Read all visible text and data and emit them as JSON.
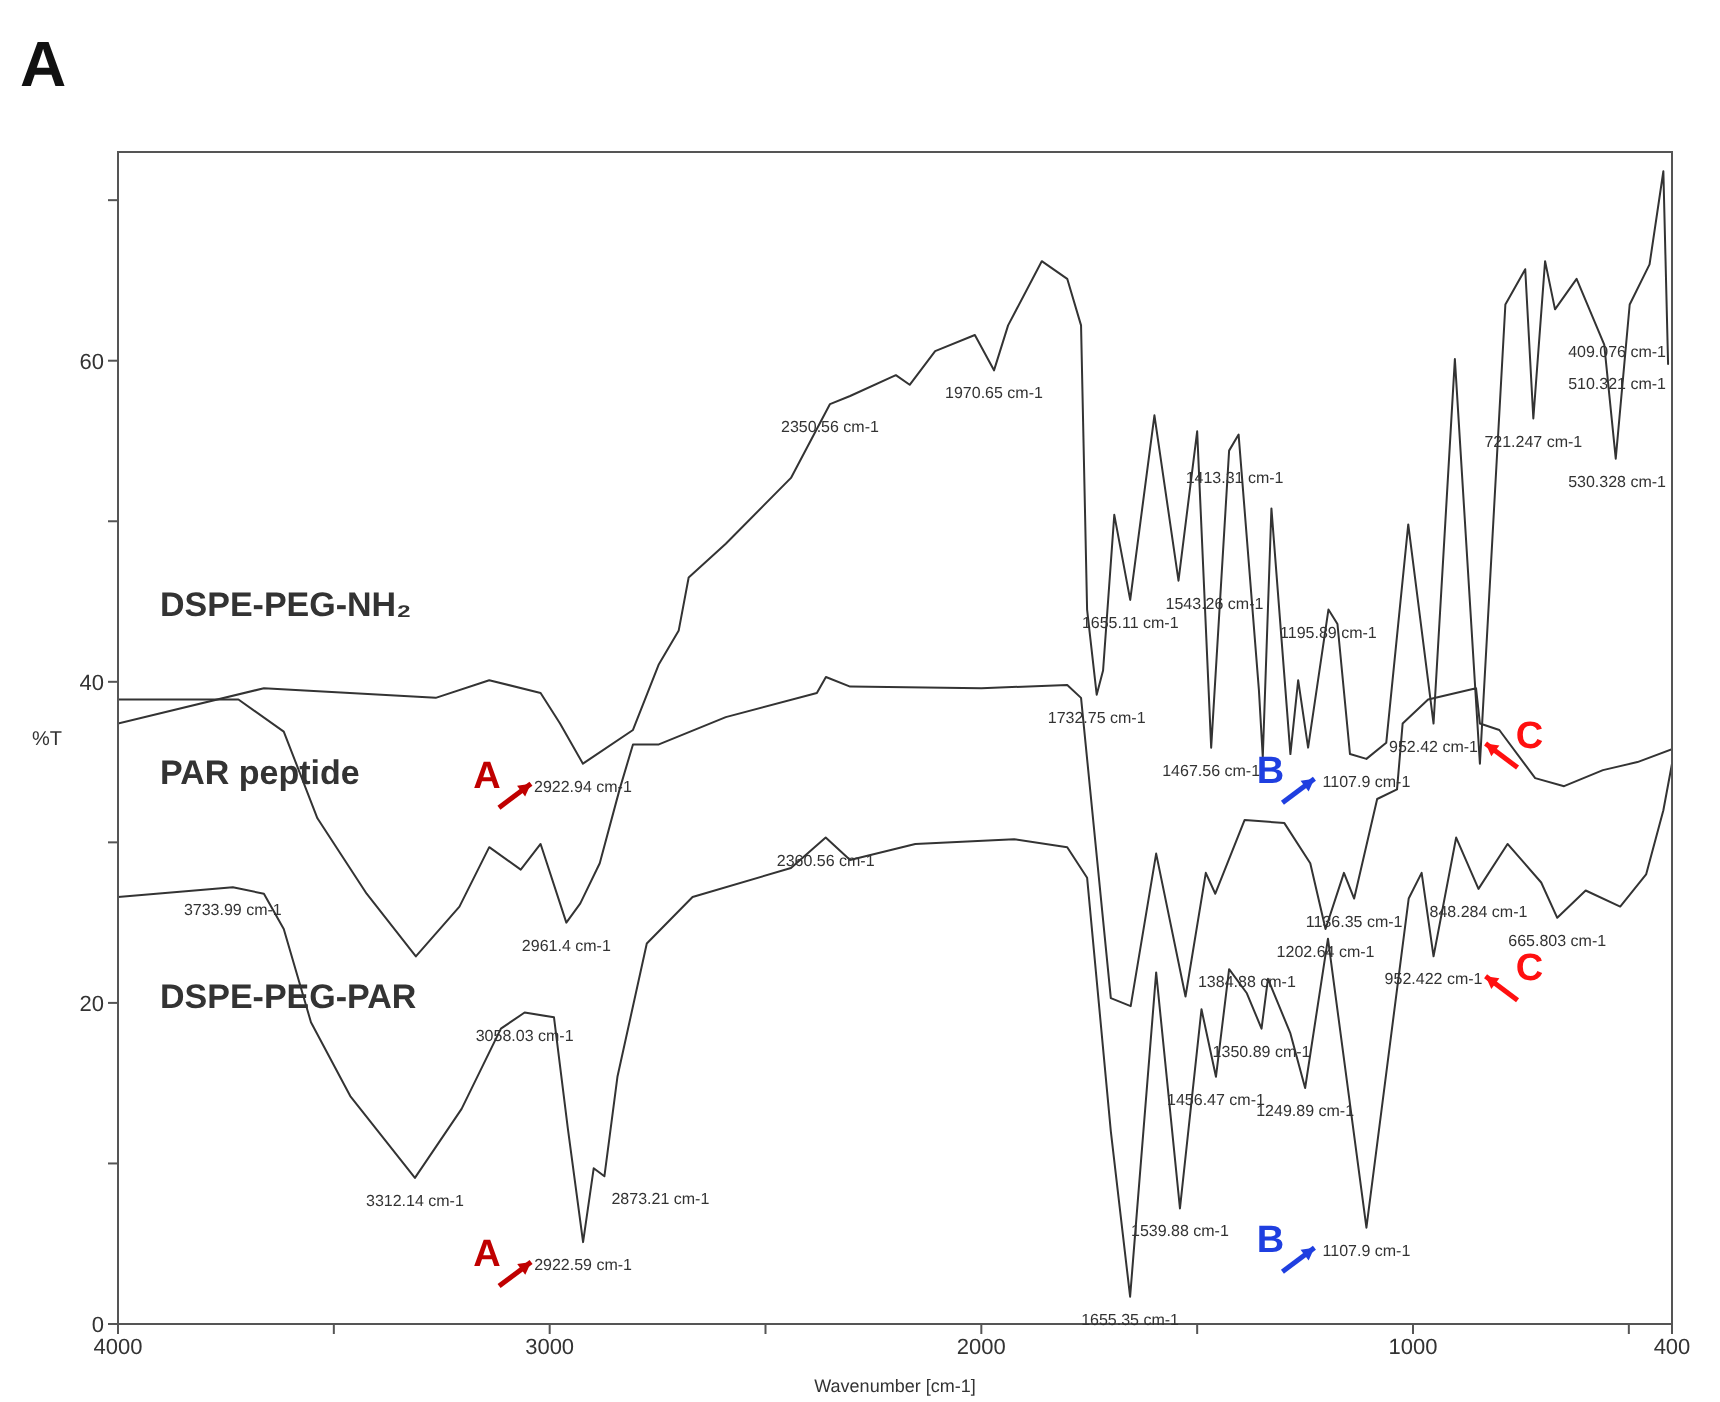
{
  "chart_data": {
    "type": "line",
    "title": "A",
    "xlabel": "Wavenumber [cm-1]",
    "ylabel": "%T",
    "xlim": [
      4000,
      400
    ],
    "xticks": [
      4000,
      {
        "value": 3500,
        "label": null
      },
      3000,
      {
        "value": 2500,
        "label": null
      },
      2000,
      {
        "value": 1500,
        "label": null
      },
      1000,
      {
        "value": 500,
        "label": null
      },
      400
    ],
    "ylim": [
      0,
      73
    ],
    "yticks": [
      0,
      {
        "value": 10,
        "label": null
      },
      20,
      {
        "value": 30,
        "label": null
      },
      40,
      {
        "value": 50,
        "label": null
      },
      60,
      {
        "value": 70,
        "label": null
      }
    ],
    "line_style": "solid",
    "series": [
      {
        "name": "DSPE-PEG-NH₂",
        "color": "#333333",
        "x": [
          4000,
          3662,
          3264,
          3140,
          3021,
          2976,
          2922.94,
          2807,
          2747,
          2701,
          2678,
          2592,
          2441,
          2350.56,
          2304,
          2198,
          2166,
          2107,
          2015,
          1970.65,
          1938,
          1860,
          1801,
          1769,
          1755,
          1732.75,
          1718,
          1692,
          1655.11,
          1599,
          1543.26,
          1500,
          1467.56,
          1426,
          1404,
          1357,
          1348,
          1328,
          1284,
          1266,
          1243,
          1195.89,
          1175,
          1146,
          1107.9,
          1062,
          1011,
          952.42,
          903,
          845,
          786,
          740,
          721.247,
          694,
          671,
          621,
          557,
          530.328,
          498,
          452,
          420,
          409.076
        ],
        "values": [
          37.4,
          39.6,
          39.0,
          40.1,
          39.3,
          37.4,
          34.9,
          37.0,
          41.1,
          43.2,
          46.5,
          48.6,
          52.7,
          57.3,
          57.8,
          59.1,
          58.5,
          60.6,
          61.6,
          59.4,
          62.2,
          66.2,
          65.1,
          62.2,
          44.5,
          39.2,
          40.7,
          50.4,
          45.1,
          56.6,
          46.3,
          55.6,
          35.9,
          54.4,
          55.4,
          39.5,
          35.3,
          50.8,
          35.5,
          40.1,
          35.9,
          44.5,
          43.6,
          35.5,
          35.2,
          36.2,
          49.8,
          37.4,
          60.1,
          34.9,
          63.5,
          65.7,
          56.4,
          66.2,
          63.2,
          65.1,
          61.0,
          53.9,
          63.5,
          66.0,
          71.8,
          59.8
        ]
      },
      {
        "name": "PAR peptide",
        "color": "#333333",
        "x": [
          4000,
          3721,
          3616,
          3538,
          3424,
          3310,
          3209,
          3140,
          3067,
          3021,
          2961.4,
          2929,
          2884,
          2838,
          2807,
          2747,
          2592,
          2381,
          2360,
          2304,
          2000,
          1801,
          1769,
          1700,
          1654,
          1595,
          1527,
          1480,
          1458,
          1390,
          1298,
          1238,
          1202.64,
          1160,
          1136.35,
          1083,
          1037,
          1024,
          965,
          854,
          845,
          800,
          717,
          650,
          560,
          480,
          400
        ],
        "values": [
          38.9,
          38.9,
          36.9,
          31.5,
          26.8,
          22.9,
          26.0,
          29.7,
          28.3,
          29.9,
          25.0,
          26.2,
          28.7,
          33.3,
          36.1,
          36.1,
          37.8,
          39.3,
          40.3,
          39.7,
          39.6,
          39.8,
          39.0,
          20.3,
          19.8,
          29.3,
          20.4,
          28.1,
          26.8,
          31.4,
          31.2,
          28.7,
          24.6,
          28.1,
          26.5,
          32.7,
          33.3,
          37.4,
          38.9,
          39.6,
          37.4,
          37.0,
          34.0,
          33.5,
          34.5,
          35.0,
          35.8
        ]
      },
      {
        "name": "DSPE-PEG-PAR",
        "color": "#333333",
        "x": [
          4000,
          3733.99,
          3662,
          3616,
          3553,
          3462,
          3312.14,
          3204,
          3113,
          3058.03,
          2990,
          2958,
          2922.59,
          2898,
          2873.21,
          2843,
          2775,
          2669,
          2441,
          2360.56,
          2304,
          2153,
          1924,
          1801,
          1755,
          1700,
          1655.35,
          1595,
          1539.88,
          1490,
          1456.47,
          1426,
          1384.88,
          1350.89,
          1336,
          1284,
          1249.89,
          1197,
          1107.9,
          1010,
          980,
          952.422,
          900,
          848.284,
          781,
          703,
          665.803,
          600,
          520,
          460,
          420,
          400
        ],
        "values": [
          26.6,
          27.2,
          26.8,
          24.6,
          18.8,
          14.2,
          9.1,
          13.4,
          18.4,
          19.4,
          19.1,
          12.2,
          5.1,
          9.7,
          9.2,
          15.4,
          23.7,
          26.6,
          28.4,
          30.3,
          28.9,
          29.9,
          30.2,
          29.7,
          27.8,
          12.0,
          1.7,
          21.9,
          7.2,
          19.6,
          15.4,
          22.1,
          20.6,
          18.4,
          21.5,
          18.1,
          14.7,
          24.0,
          6.0,
          26.5,
          28.1,
          22.9,
          30.3,
          27.1,
          29.9,
          27.5,
          25.3,
          27.0,
          26.0,
          28.0,
          32.0,
          34.9
        ]
      }
    ],
    "annotations": [
      {
        "text": "2922.94 cm-1",
        "x": 2922.94,
        "y": 34.9
      },
      {
        "text": "2350.56 cm-1",
        "x": 2350.56,
        "y": 57.3
      },
      {
        "text": "1970.65 cm-1",
        "x": 1970.65,
        "y": 59.4
      },
      {
        "text": "1732.75 cm-1",
        "x": 1732.75,
        "y": 39.2
      },
      {
        "text": "1655.11 cm-1",
        "x": 1655.11,
        "y": 45.1
      },
      {
        "text": "1543.26 cm-1",
        "x": 1543.26,
        "y": 46.3
      },
      {
        "text": "1413.31 cm-1",
        "x": 1413.31,
        "y": 52
      },
      {
        "text": "1467.56 cm-1",
        "x": 1467.56,
        "y": 35.9
      },
      {
        "text": "1195.89 cm-1",
        "x": 1195.89,
        "y": 44.5
      },
      {
        "text": "1107.9 cm-1",
        "x": 1107.9,
        "y": 35.2
      },
      {
        "text": "952.42 cm-1",
        "x": 952.42,
        "y": 37.4
      },
      {
        "text": "721.247 cm-1",
        "x": 721.247,
        "y": 56.4
      },
      {
        "text": "530.328 cm-1",
        "x": 530.328,
        "y": 53.9
      },
      {
        "text": "510.321 cm-1",
        "x": 510.321,
        "y": 60
      },
      {
        "text": "409.076 cm-1",
        "x": 409.076,
        "y": 62
      },
      {
        "text": "2961.4 cm-1",
        "x": 2961.4,
        "y": 25.0
      },
      {
        "text": "1136.35 cm-1",
        "x": 1136.35,
        "y": 26.5
      },
      {
        "text": "1202.64 cm-1",
        "x": 1202.64,
        "y": 24.6
      },
      {
        "text": "3733.99 cm-1",
        "x": 3733.99,
        "y": 27.2
      },
      {
        "text": "3312.14 cm-1",
        "x": 3312.14,
        "y": 9.1
      },
      {
        "text": "3058.03 cm-1",
        "x": 3058.03,
        "y": 19.4
      },
      {
        "text": "2873.21 cm-1",
        "x": 2873.21,
        "y": 9.2
      },
      {
        "text": "2922.59 cm-1",
        "x": 2922.59,
        "y": 5.1
      },
      {
        "text": "2360.56 cm-1",
        "x": 2360.56,
        "y": 30.3
      },
      {
        "text": "1655.35 cm-1",
        "x": 1655.35,
        "y": 1.7
      },
      {
        "text": "1539.88 cm-1",
        "x": 1539.88,
        "y": 7.2
      },
      {
        "text": "1456.47 cm-1",
        "x": 1456.47,
        "y": 15.4
      },
      {
        "text": "1384.88 cm-1",
        "x": 1384.88,
        "y": 20.6
      },
      {
        "text": "1350.89 cm-1",
        "x": 1350.89,
        "y": 18.4
      },
      {
        "text": "1249.89 cm-1",
        "x": 1249.89,
        "y": 14.7
      },
      {
        "text": "1107.9 cm-1",
        "x": 1107.9,
        "y": 6.0
      },
      {
        "text": "952.422 cm-1",
        "x": 952.422,
        "y": 22.9
      },
      {
        "text": "848.284 cm-1",
        "x": 848.284,
        "y": 27.1
      },
      {
        "text": "665.803 cm-1",
        "x": 665.803,
        "y": 25.3
      },
      {
        "text": "A",
        "x": 2922.94,
        "y": 34.9
      },
      {
        "text": "B",
        "x": 1107.9,
        "y": 35.2
      },
      {
        "text": "C",
        "x": 952.42,
        "y": 37.4
      },
      {
        "text": "A",
        "x": 2922.59,
        "y": 5.1
      },
      {
        "text": "B",
        "x": 1107.9,
        "y": 6.0
      },
      {
        "text": "C",
        "x": 952.422,
        "y": 22.9
      }
    ]
  }
}
